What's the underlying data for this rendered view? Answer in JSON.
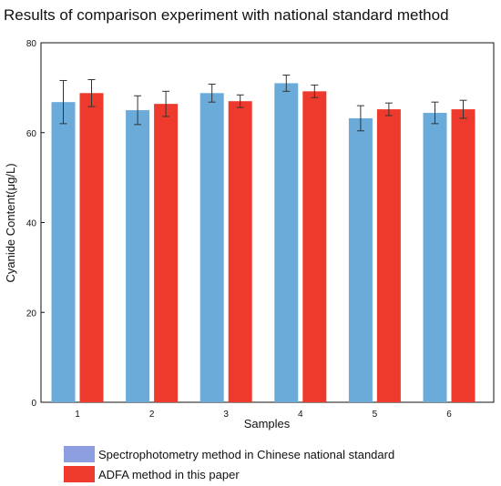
{
  "chart_data": {
    "type": "bar",
    "title": "Results of comparison experiment with national standard method",
    "xlabel": "Samples",
    "ylabel": "Cyanide Content(μg/L)",
    "categories": [
      "1",
      "2",
      "3",
      "4",
      "5",
      "6"
    ],
    "ylim": [
      0,
      80
    ],
    "yticks": [
      "0",
      "20",
      "40",
      "60",
      "80"
    ],
    "grid": false,
    "legend_position": "bottom",
    "series": [
      {
        "name": "Spectrophotometry method in Chinese national standard",
        "color": "#6aabd9",
        "values": [
          66.8,
          65.0,
          68.8,
          71.0,
          63.2,
          64.4
        ],
        "errors": [
          4.8,
          3.2,
          2.0,
          1.8,
          2.8,
          2.4
        ]
      },
      {
        "name": "ADFA method in this paper",
        "color": "#ee3a2c",
        "values": [
          68.8,
          66.4,
          67.0,
          69.2,
          65.2,
          65.2
        ],
        "errors": [
          3.0,
          2.8,
          1.4,
          1.4,
          1.4,
          2.0
        ]
      }
    ]
  }
}
